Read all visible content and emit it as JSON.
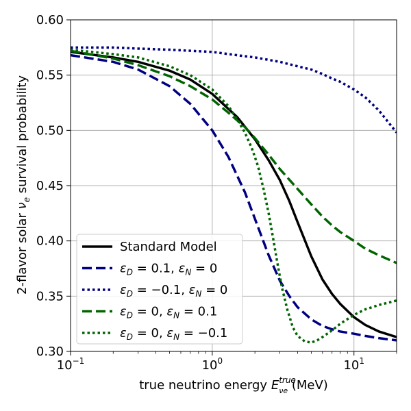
{
  "chart_data": {
    "type": "line",
    "xscale": "log",
    "xlim": [
      0.1,
      20
    ],
    "ylim": [
      0.3,
      0.6
    ],
    "grid": true,
    "legend_position": "bottom-left",
    "xlabel_prefix": "true neutrino energy ",
    "xlabel_symbol": "E",
    "xlabel_sub": "νe",
    "xlabel_sup": "true",
    "xlabel_suffix": " (MeV)",
    "ylabel_prefix": "2-flavor solar ",
    "ylabel_symbol": "ν",
    "ylabel_sub": "e",
    "ylabel_suffix": " survival probability",
    "x_ticks": [
      {
        "value": 0.1,
        "base": "10",
        "exp": "−1"
      },
      {
        "value": 1,
        "base": "10",
        "exp": "0"
      },
      {
        "value": 10,
        "base": "10",
        "exp": "1"
      }
    ],
    "y_ticks": [
      {
        "value": 0.3,
        "label": "0.30"
      },
      {
        "value": 0.35,
        "label": "0.35"
      },
      {
        "value": 0.4,
        "label": "0.40"
      },
      {
        "value": 0.45,
        "label": "0.45"
      },
      {
        "value": 0.5,
        "label": "0.50"
      },
      {
        "value": 0.55,
        "label": "0.55"
      },
      {
        "value": 0.6,
        "label": "0.60"
      }
    ],
    "series": [
      {
        "name": "Standard Model",
        "color": "#000000",
        "dash": "solid",
        "x": [
          0.1,
          0.2,
          0.3,
          0.5,
          0.7,
          1.0,
          1.5,
          2.0,
          2.5,
          3.0,
          3.5,
          4.0,
          5.0,
          6.0,
          7.0,
          8.0,
          10.0,
          12.0,
          15.0,
          20.0
        ],
        "y": [
          0.571,
          0.566,
          0.562,
          0.554,
          0.546,
          0.533,
          0.512,
          0.492,
          0.473,
          0.455,
          0.436,
          0.417,
          0.386,
          0.365,
          0.352,
          0.343,
          0.331,
          0.324,
          0.318,
          0.313
        ]
      },
      {
        "name": "εD = 0.1, εN = 0",
        "color": "#000080",
        "dash": "dashed",
        "x": [
          0.1,
          0.2,
          0.3,
          0.5,
          0.7,
          1.0,
          1.3,
          1.7,
          2.0,
          2.5,
          3.0,
          3.5,
          4.0,
          5.0,
          6.0,
          7.0,
          8.0,
          10.0,
          12.0,
          15.0,
          20.0
        ],
        "y": [
          0.568,
          0.562,
          0.555,
          0.54,
          0.524,
          0.5,
          0.476,
          0.444,
          0.42,
          0.387,
          0.364,
          0.35,
          0.34,
          0.329,
          0.323,
          0.32,
          0.318,
          0.316,
          0.314,
          0.312,
          0.31
        ]
      },
      {
        "name": "εD = −0.1, εN = 0",
        "color": "#000080",
        "dash": "dotted",
        "x": [
          0.1,
          0.2,
          0.3,
          0.5,
          0.7,
          1.0,
          1.5,
          2.0,
          3.0,
          4.0,
          5.0,
          6.0,
          7.0,
          8.0,
          10.0,
          12.0,
          15.0,
          20.0
        ],
        "y": [
          0.575,
          0.575,
          0.574,
          0.573,
          0.572,
          0.571,
          0.568,
          0.566,
          0.562,
          0.558,
          0.555,
          0.551,
          0.547,
          0.544,
          0.537,
          0.53,
          0.518,
          0.498
        ]
      },
      {
        "name": "εD = 0, εN = 0.1",
        "color": "#006400",
        "dash": "dashed",
        "x": [
          0.1,
          0.2,
          0.3,
          0.5,
          0.7,
          1.0,
          1.3,
          1.7,
          2.0,
          2.5,
          3.0,
          4.0,
          5.0,
          6.0,
          7.0,
          8.0,
          10.0,
          12.0,
          15.0,
          20.0
        ],
        "y": [
          0.572,
          0.565,
          0.559,
          0.549,
          0.54,
          0.528,
          0.516,
          0.503,
          0.493,
          0.478,
          0.465,
          0.447,
          0.433,
          0.422,
          0.414,
          0.408,
          0.4,
          0.393,
          0.387,
          0.38
        ]
      },
      {
        "name": "εD = 0, εN = −0.1",
        "color": "#006400",
        "dash": "dotted",
        "x": [
          0.1,
          0.2,
          0.3,
          0.5,
          0.7,
          1.0,
          1.3,
          1.5,
          1.7,
          1.9,
          2.1,
          2.3,
          2.5,
          2.7,
          2.9,
          3.1,
          3.4,
          3.7,
          4.0,
          4.5,
          5.0,
          5.5,
          6.0,
          7.0,
          8.0,
          10.0,
          12.0,
          15.0,
          20.0
        ],
        "y": [
          0.573,
          0.569,
          0.566,
          0.558,
          0.55,
          0.537,
          0.522,
          0.51,
          0.498,
          0.484,
          0.468,
          0.447,
          0.425,
          0.401,
          0.378,
          0.358,
          0.337,
          0.322,
          0.314,
          0.309,
          0.308,
          0.31,
          0.313,
          0.319,
          0.325,
          0.333,
          0.338,
          0.342,
          0.346
        ]
      }
    ],
    "legend": [
      {
        "type": "plain",
        "text": "Standard Model"
      },
      {
        "type": "eps",
        "d": "= 0.1, ",
        "n": "= 0"
      },
      {
        "type": "eps",
        "d": "= −0.1, ",
        "n": "= 0"
      },
      {
        "type": "eps",
        "d": "= 0, ",
        "n": "= 0.1"
      },
      {
        "type": "eps",
        "d": "= 0, ",
        "n": "= −0.1"
      }
    ]
  }
}
